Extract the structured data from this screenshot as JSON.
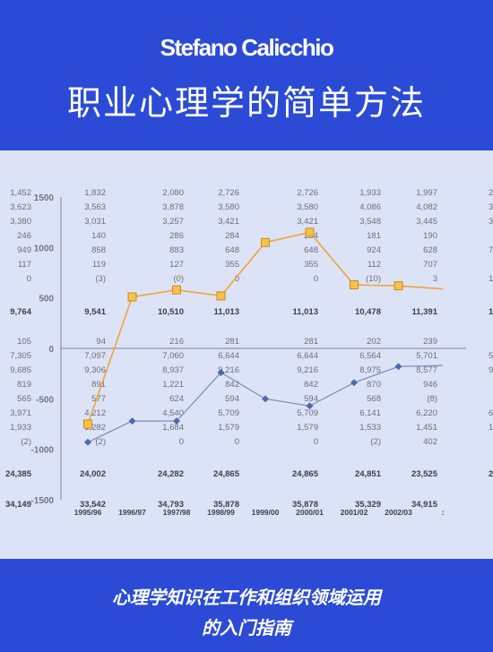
{
  "cover": {
    "author": "Stefano Calicchio",
    "title": "职业心理学的简单方法",
    "subtitle_line1": "心理学知识在工作和组织领域运用",
    "subtitle_line2": "的入门指南"
  },
  "colors": {
    "band": "#2b4bd6",
    "art_bg": "#dde3f7",
    "upper_line": "#f0a43a",
    "lower_line": "#7a8fb5"
  },
  "art": {
    "columns": [
      [
        "1,452",
        "3,623",
        "3,380",
        "246",
        "949",
        "117",
        "0"
      ],
      [
        "1,832",
        "3,563",
        "3,031",
        "140",
        "858",
        "119",
        "(3)"
      ],
      [
        "2,080",
        "3,878",
        "3,257",
        "286",
        "883",
        "127",
        "(0)"
      ],
      [
        "2,726",
        "3,580",
        "3,421",
        "284",
        "648",
        "355",
        "0"
      ],
      [
        "2,726",
        "3,580",
        "3,421",
        "284",
        "648",
        "355",
        "0"
      ],
      [
        "1,933",
        "4,086",
        "3,548",
        "181",
        "924",
        "112",
        "(10)"
      ],
      [
        "1,997",
        "4,082",
        "3,445",
        "190",
        "628",
        "707",
        "3"
      ],
      [
        "2,4",
        "3,7",
        "3,",
        "",
        "7",
        "",
        "1"
      ]
    ],
    "bold_row1": [
      "9,764",
      "9,541",
      "10,510",
      "11,013",
      "11,013",
      "10,478",
      "11,391",
      "11,5"
    ],
    "columns2": [
      [
        "105",
        "7,305",
        "9,685",
        "819",
        "565",
        "3,971",
        "1,933",
        "(2)"
      ],
      [
        "94",
        "7,097",
        "9,306",
        "891",
        "577",
        "4,212",
        "1,282",
        "(2)"
      ],
      [
        "216",
        "7,060",
        "8,937",
        "1,221",
        "624",
        "4,540",
        "1,684",
        "0"
      ],
      [
        "281",
        "6,644",
        "9,216",
        "842",
        "594",
        "5,709",
        "1,579",
        "0"
      ],
      [
        "281",
        "6,644",
        "9,216",
        "842",
        "594",
        "5,709",
        "1,579",
        "0"
      ],
      [
        "202",
        "6,564",
        "8,975",
        "870",
        "568",
        "6,141",
        "1,533",
        "(2)"
      ],
      [
        "239",
        "5,701",
        "8,577",
        "946",
        "(8)",
        "6,220",
        "1,451",
        "402"
      ],
      [
        "",
        "5,6",
        "9,",
        "",
        "",
        "6,",
        "1,4",
        ""
      ]
    ],
    "bold_row2": [
      "24,385",
      "24,002",
      "24,282",
      "24,865",
      "24,865",
      "24,851",
      "23,525",
      "22,8"
    ],
    "bold_row3": [
      "34,149",
      "33,542",
      "34,793",
      "35,878",
      "35,878",
      "35,329",
      "34,915",
      ""
    ],
    "y_ticks": [
      "1500",
      "1000",
      "500",
      "0",
      "-500",
      "-1000",
      "-1500"
    ],
    "x_labels": [
      "1995/96",
      "1996/97",
      "1997/98",
      "1998/99",
      "1999/00",
      "2000/01",
      "2001/02",
      "2002/03",
      ":"
    ],
    "upper_series": [
      -750,
      510,
      580,
      520,
      1050,
      1150,
      630,
      620,
      590
    ],
    "lower_series": [
      -930,
      -720,
      -720,
      -240,
      -500,
      -570,
      -340,
      -180,
      -170
    ]
  }
}
